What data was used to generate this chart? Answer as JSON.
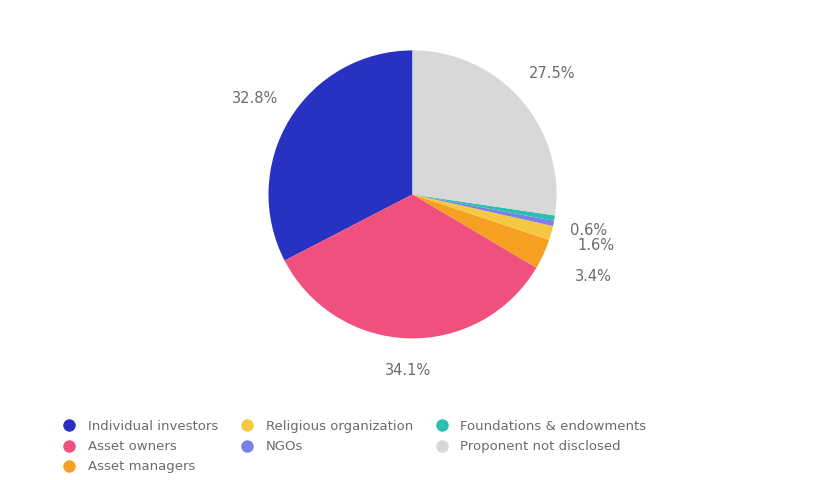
{
  "labels": [
    "Individual investors",
    "Asset owners",
    "Asset managers",
    "Religious organization",
    "NGOs",
    "Foundations & endowments",
    "Proponent not disclosed"
  ],
  "values": [
    32.8,
    34.1,
    3.4,
    1.6,
    0.6,
    0.6,
    27.5
  ],
  "colors": [
    "#2832C2",
    "#F0507D",
    "#F5A020",
    "#F5C842",
    "#7B7FE8",
    "#2ABFB0",
    "#D8D8D8"
  ],
  "startangle": 90,
  "background_color": "#ffffff",
  "text_color": "#6B6B6B",
  "pct_labels": [
    "32.8%",
    "34.1%",
    "3.4%",
    "1.6%",
    "0.6%",
    null,
    "27.5%"
  ],
  "pct_radii": [
    1.28,
    1.22,
    1.38,
    1.32,
    1.25,
    null,
    1.28
  ],
  "legend_order": [
    [
      "Individual investors",
      "Asset owners",
      "Asset managers"
    ],
    [
      "Religious organization",
      "NGOs",
      "Foundations & endowments"
    ],
    [
      "Proponent not disclosed"
    ]
  ],
  "legend_colors_order": [
    [
      "#2832C2",
      "#F0507D",
      "#F5A020"
    ],
    [
      "#F5C842",
      "#7B7FE8",
      "#2ABFB0"
    ],
    [
      "#D8D8D8"
    ]
  ]
}
